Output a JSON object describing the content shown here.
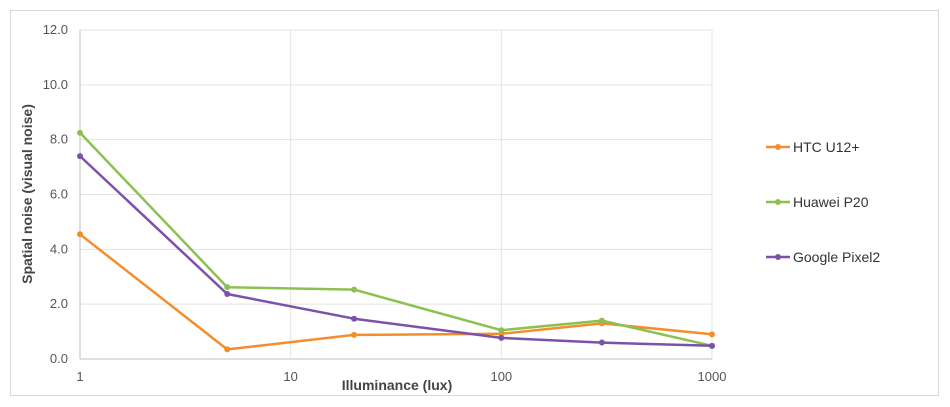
{
  "chart_data": {
    "type": "line",
    "title": "",
    "xlabel": "Illuminance (lux)",
    "ylabel": "Spatial noise (visual noise)",
    "xscale": "log",
    "xlim": [
      1,
      1000
    ],
    "ylim": [
      0,
      12
    ],
    "x_ticks": [
      1,
      10,
      100,
      1000
    ],
    "x_tick_labels": [
      "1",
      "10",
      "100",
      "1000"
    ],
    "y_ticks": [
      0,
      2,
      4,
      6,
      8,
      10,
      12
    ],
    "y_tick_labels": [
      "0.0",
      "2.0",
      "4.0",
      "6.0",
      "8.0",
      "10.0",
      "12.0"
    ],
    "grid": true,
    "legend_position": "right",
    "x": [
      1,
      5,
      20,
      100,
      300,
      1000
    ],
    "series": [
      {
        "name": "HTC U12+",
        "color": "#f28e2b",
        "values": [
          4.55,
          0.35,
          0.88,
          0.92,
          1.3,
          0.9
        ]
      },
      {
        "name": "Huawei P20",
        "color": "#8cc152",
        "values": [
          8.25,
          2.62,
          2.53,
          1.05,
          1.4,
          0.48
        ]
      },
      {
        "name": "Google Pixel2",
        "color": "#7b52a8",
        "values": [
          7.4,
          2.37,
          1.47,
          0.77,
          0.6,
          0.48
        ]
      }
    ]
  }
}
